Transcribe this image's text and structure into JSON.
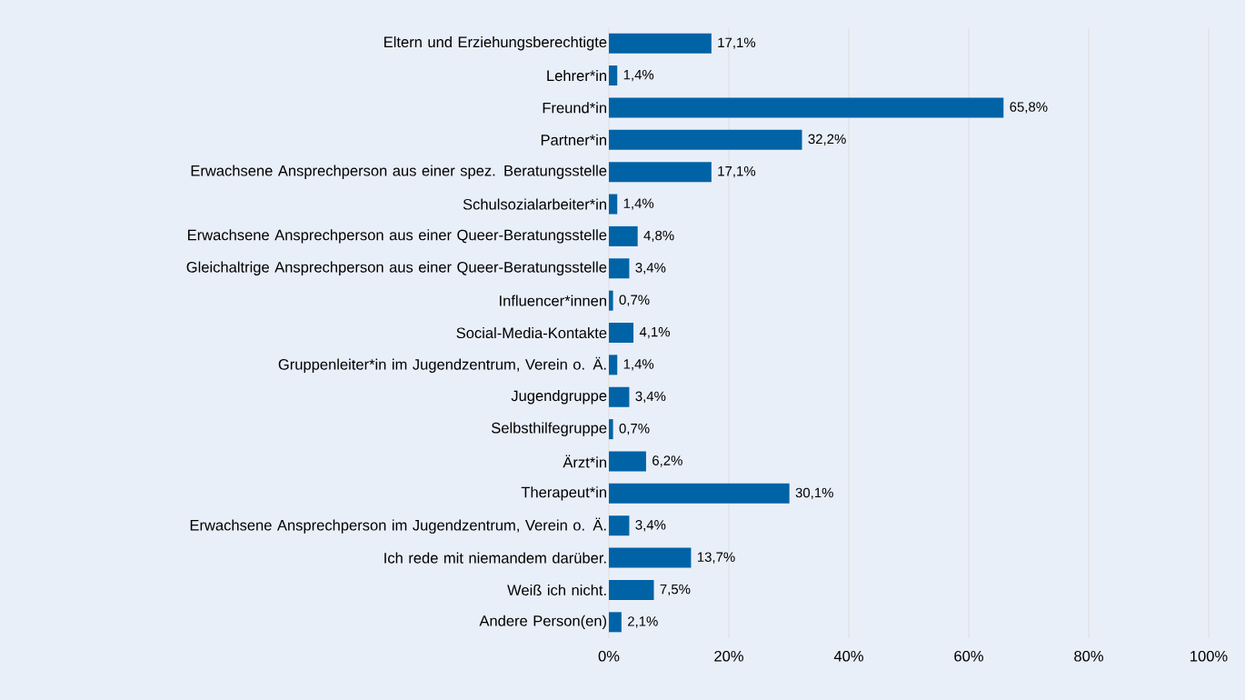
{
  "chart_data": {
    "type": "bar",
    "orientation": "horizontal",
    "color": "#0063a6",
    "grid": "x",
    "categories": [
      "Eltern und Erziehungsberechtigte",
      "Lehrer*in",
      "Freund*in",
      "Partner*in",
      "Erwachsene Ansprechperson aus einer spez. Beratungsstelle",
      "Schulsozialarbeiter*in",
      "Erwachsene Ansprechperson aus einer Queer-Beratungsstelle",
      "Gleichaltrige Ansprechperson aus einer Queer-Beratungsstelle",
      "Influencer*innen",
      "Social-Media-Kontakte",
      "Gruppenleiter*in im Jugendzentrum, Verein o. Ä.",
      "Jugendgruppe",
      "Selbsthilfegruppe",
      "Ärzt*in",
      "Therapeut*in",
      "Erwachsene Ansprechperson im Jugendzentrum, Verein o. Ä.",
      "Ich rede mit niemandem darüber.",
      "Weiß ich nicht.",
      "Andere Person(en)"
    ],
    "values": [
      17.1,
      1.4,
      65.8,
      32.2,
      17.1,
      1.4,
      4.8,
      3.4,
      0.7,
      4.1,
      1.4,
      3.4,
      0.7,
      6.2,
      30.1,
      3.4,
      13.7,
      7.5,
      2.1
    ],
    "value_labels": [
      "17,1%",
      "1,4%",
      "65,8%",
      "32,2%",
      "17,1%",
      "1,4%",
      "4,8%",
      "3,4%",
      "0,7%",
      "4,1%",
      "1,4%",
      "3,4%",
      "0,7%",
      "6,2%",
      "30,1%",
      "3,4%",
      "13,7%",
      "7,5%",
      "2,1%"
    ],
    "xlim": [
      0,
      100
    ],
    "xticks": [
      {
        "value": 0,
        "label": "0%"
      },
      {
        "value": 20,
        "label": "20%"
      },
      {
        "value": 40,
        "label": "40%"
      },
      {
        "value": 60,
        "label": "60%"
      },
      {
        "value": 80,
        "label": "80%"
      },
      {
        "value": 100,
        "label": "100%"
      }
    ]
  }
}
